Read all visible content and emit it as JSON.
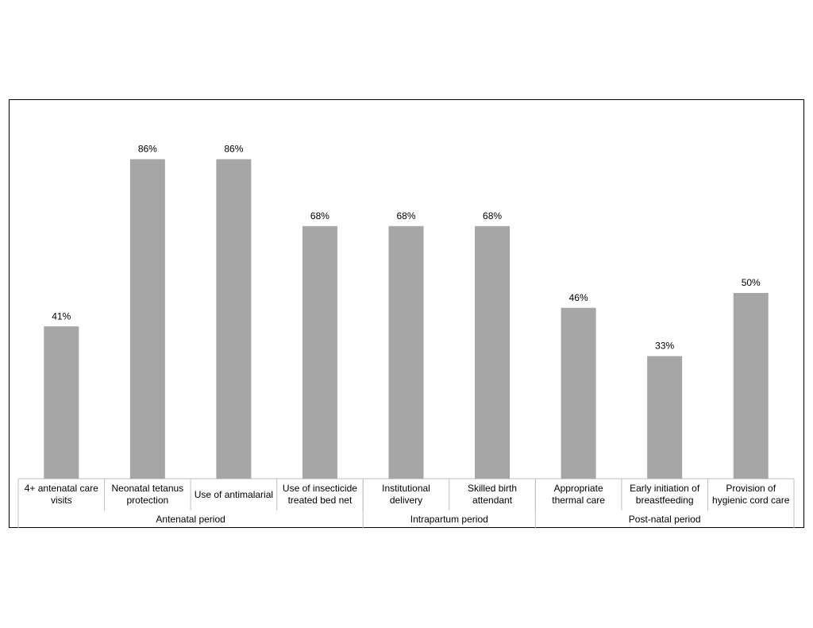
{
  "chart_data": {
    "type": "bar",
    "categories": [
      "4+ antenatal care visits",
      "Neonatal tetanus protection",
      "Use of antimalarial",
      "Use of insecticide treated bed net",
      "Institutional delivery",
      "Skilled birth attendant",
      "Appropriate thermal care",
      "Early initiation of breastfeeding",
      "Provision of hygienic cord care"
    ],
    "values": [
      41,
      86,
      86,
      68,
      68,
      68,
      46,
      33,
      50
    ],
    "value_labels": [
      "41%",
      "86%",
      "86%",
      "68%",
      "68%",
      "68%",
      "46%",
      "33%",
      "50%"
    ],
    "color": "#a6a6a6",
    "groups": [
      {
        "name": "Antenatal period",
        "size": 4
      },
      {
        "name": "Intrapartum period",
        "size": 2
      },
      {
        "name": "Post-natal period",
        "size": 3
      }
    ]
  }
}
